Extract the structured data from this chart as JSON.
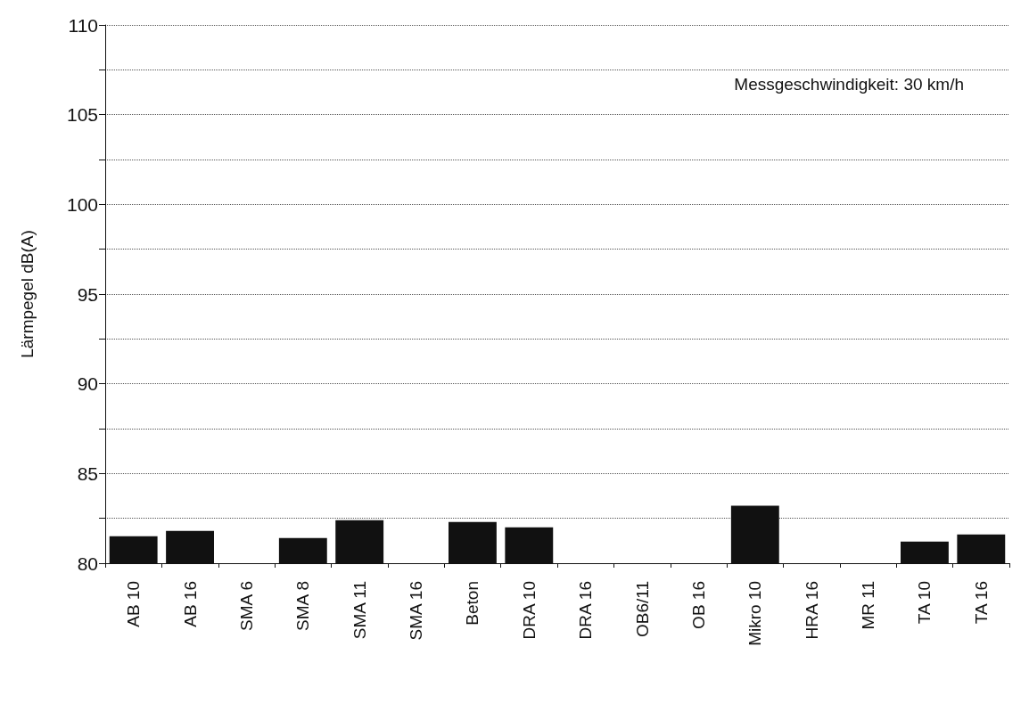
{
  "chart_data": {
    "type": "bar",
    "ylabel": "Lärmpegel dB(A)",
    "annotations": [
      "Messgeschwindigkeit: 30 km/h"
    ],
    "categories": [
      "AB 10",
      "AB 16",
      "SMA 6",
      "SMA 8",
      "SMA 11",
      "SMA 16",
      "Beton",
      "DRA 10",
      "DRA 16",
      "OB6/11",
      "OB 16",
      "Mikro 10",
      "HRA 16",
      "MR 11",
      "TA 10",
      "TA 16"
    ],
    "values": [
      81.5,
      81.8,
      null,
      81.4,
      82.4,
      null,
      82.3,
      82.0,
      null,
      null,
      null,
      83.2,
      null,
      null,
      81.2,
      81.6
    ],
    "color": "#111111",
    "ylim": [
      80,
      110
    ],
    "yticks": [
      80,
      85,
      90,
      95,
      100,
      105,
      110
    ],
    "grid": "y",
    "line_style": "dotted"
  }
}
